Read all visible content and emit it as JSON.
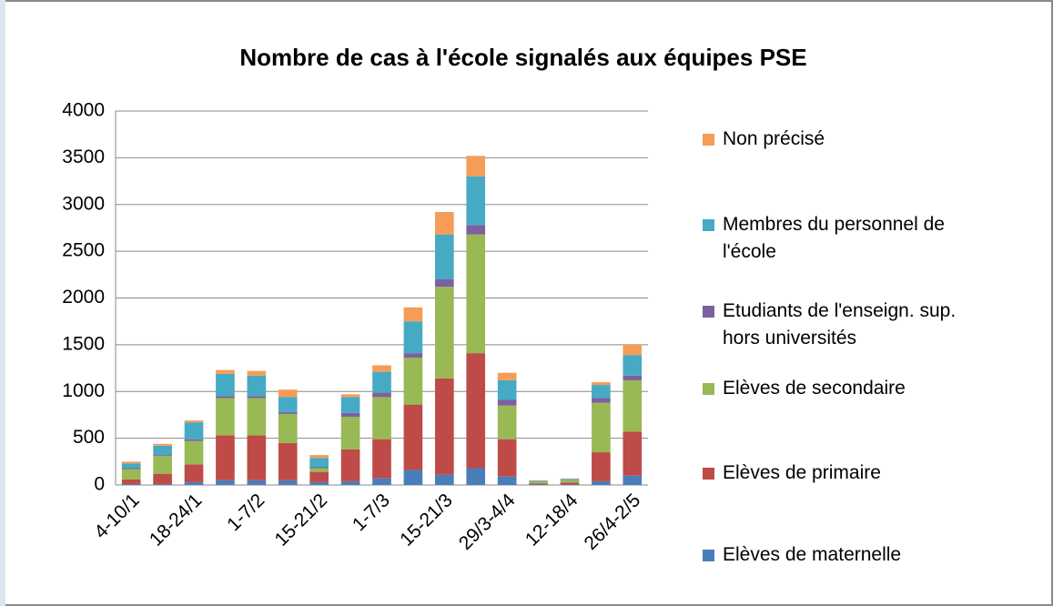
{
  "chart_data": {
    "type": "stacked-bar",
    "title": "Nombre de cas à l'école signalés aux équipes PSE",
    "categories": [
      "4-10/1",
      null,
      "18-24/1",
      null,
      "1-7/2",
      null,
      "15-21/2",
      null,
      "1-7/3",
      null,
      "15-21/3",
      null,
      "29/3-4/4",
      null,
      "12-18/4",
      null,
      "26/4-2/5"
    ],
    "series": [
      {
        "name": "Elèves de maternelle",
        "color": "#4a7ebb",
        "values": [
          10,
          10,
          30,
          50,
          50,
          50,
          30,
          40,
          70,
          160,
          110,
          180,
          90,
          5,
          5,
          40,
          100
        ]
      },
      {
        "name": "Elèves de primaire",
        "color": "#be4b48",
        "values": [
          50,
          110,
          190,
          480,
          480,
          400,
          110,
          340,
          420,
          700,
          1030,
          1230,
          400,
          10,
          20,
          310,
          470
        ]
      },
      {
        "name": "Elèves de secondaire",
        "color": "#98b954",
        "values": [
          110,
          190,
          250,
          400,
          400,
          310,
          40,
          350,
          450,
          500,
          980,
          1270,
          360,
          20,
          25,
          530,
          550
        ]
      },
      {
        "name": "Etudiants de l'enseign. sup. hors universités",
        "color": "#7d60a0",
        "values": [
          10,
          10,
          20,
          20,
          20,
          20,
          10,
          40,
          50,
          50,
          80,
          100,
          60,
          0,
          5,
          50,
          50
        ]
      },
      {
        "name": "Membres du personnel de l'école",
        "color": "#46aac5",
        "values": [
          50,
          100,
          180,
          240,
          220,
          160,
          100,
          170,
          220,
          340,
          480,
          520,
          210,
          10,
          10,
          140,
          220
        ]
      },
      {
        "name": "Non précisé",
        "color": "#f59d56",
        "values": [
          20,
          20,
          20,
          40,
          50,
          80,
          30,
          30,
          70,
          150,
          240,
          220,
          80,
          5,
          5,
          30,
          110
        ]
      }
    ],
    "ylim": [
      0,
      4000
    ],
    "yticks": [
      0,
      500,
      1000,
      1500,
      2000,
      2500,
      3000,
      3500,
      4000
    ],
    "grid": true,
    "legend": "right"
  }
}
